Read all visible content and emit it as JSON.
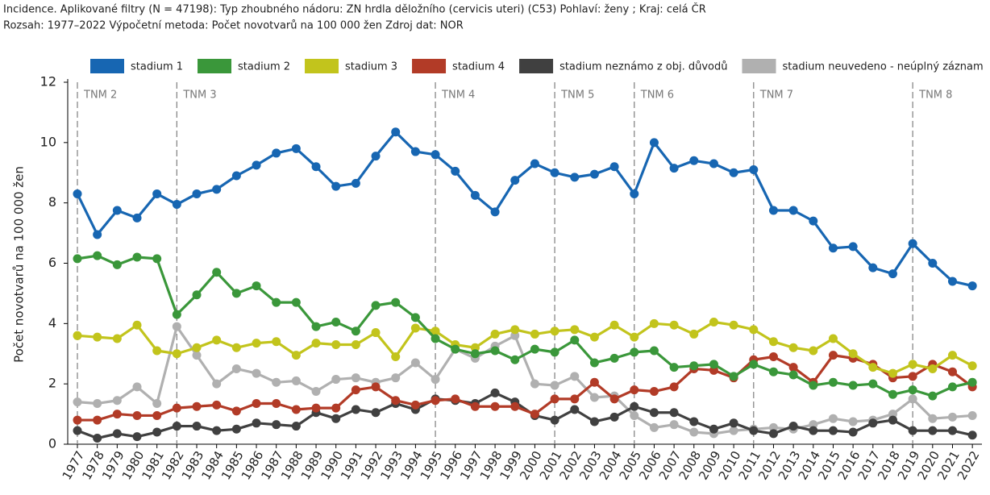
{
  "header": {
    "line1": "Incidence. Aplikované filtry (N = 47198): Typ zhoubného nádoru: ZN hrdla děložního (cervicis uteri) (C53) Pohlaví: ženy ; Kraj: celá ČR",
    "line2": "Rozsah: 1977–2022 Výpočetní metoda: Počet novotvarů na 100 000 žen Zdroj dat: NOR"
  },
  "chart_data": {
    "type": "line",
    "y_label": "Počet novotvarů na 100 000 žen",
    "categories": [
      "1977",
      "1978",
      "1979",
      "1980",
      "1981",
      "1982",
      "1983",
      "1984",
      "1985",
      "1986",
      "1987",
      "1988",
      "1989",
      "1990",
      "1991",
      "1992",
      "1993",
      "1994",
      "1995",
      "1996",
      "1997",
      "1998",
      "1999",
      "2000",
      "2001",
      "2002",
      "2003",
      "2004",
      "2005",
      "2006",
      "2007",
      "2008",
      "2009",
      "2010",
      "2011",
      "2012",
      "2013",
      "2014",
      "2015",
      "2016",
      "2017",
      "2018",
      "2019",
      "2020",
      "2021",
      "2022"
    ],
    "series": [
      {
        "name": "stadium 1",
        "color": "#1766b2",
        "values": [
          8.3,
          6.95,
          7.75,
          7.5,
          8.3,
          7.95,
          8.3,
          8.45,
          8.9,
          9.25,
          9.65,
          9.8,
          9.2,
          8.55,
          8.65,
          9.55,
          10.35,
          9.7,
          9.6,
          9.05,
          8.25,
          7.7,
          8.75,
          9.3,
          9.0,
          8.85,
          8.95,
          9.2,
          8.3,
          10.0,
          9.15,
          9.4,
          9.3,
          9.0,
          9.1,
          7.75,
          7.75,
          7.4,
          6.5,
          6.55,
          5.85,
          5.65,
          6.65,
          6.0,
          5.4,
          5.25
        ]
      },
      {
        "name": "stadium 2",
        "color": "#3a973a",
        "values": [
          6.15,
          6.25,
          5.95,
          6.2,
          6.15,
          4.3,
          4.95,
          5.7,
          5.0,
          5.25,
          4.7,
          4.7,
          3.9,
          4.05,
          3.75,
          4.6,
          4.7,
          4.2,
          3.5,
          3.15,
          3.0,
          3.1,
          2.8,
          3.15,
          3.05,
          3.45,
          2.7,
          2.85,
          3.05,
          3.1,
          2.55,
          2.6,
          2.65,
          2.25,
          2.65,
          2.4,
          2.3,
          1.95,
          2.05,
          1.95,
          2.0,
          1.65,
          1.8,
          1.6,
          1.9,
          2.05
        ]
      },
      {
        "name": "stadium 3",
        "color": "#c2c41c",
        "values": [
          3.6,
          3.55,
          3.5,
          3.95,
          3.1,
          3.0,
          3.2,
          3.45,
          3.2,
          3.35,
          3.4,
          2.95,
          3.35,
          3.3,
          3.3,
          3.7,
          2.9,
          3.85,
          3.75,
          3.3,
          3.2,
          3.65,
          3.8,
          3.65,
          3.75,
          3.8,
          3.55,
          3.95,
          3.55,
          4.0,
          3.95,
          3.65,
          4.05,
          3.95,
          3.8,
          3.4,
          3.2,
          3.1,
          3.5,
          3.0,
          2.55,
          2.35,
          2.65,
          2.5,
          2.95,
          2.6
        ]
      },
      {
        "name": "stadium 4",
        "color": "#b23b27",
        "values": [
          0.8,
          0.8,
          1.0,
          0.95,
          0.95,
          1.2,
          1.25,
          1.3,
          1.1,
          1.35,
          1.35,
          1.15,
          1.2,
          1.2,
          1.8,
          1.9,
          1.45,
          1.3,
          1.45,
          1.5,
          1.25,
          1.25,
          1.25,
          1.0,
          1.5,
          1.5,
          2.05,
          1.5,
          1.8,
          1.75,
          1.9,
          2.5,
          2.45,
          2.2,
          2.8,
          2.9,
          2.55,
          2.05,
          2.95,
          2.85,
          2.65,
          2.2,
          2.25,
          2.65,
          2.4,
          1.9
        ]
      },
      {
        "name": "stadium neznámo z obj. důvodů",
        "color": "#404040",
        "values": [
          0.45,
          0.2,
          0.35,
          0.25,
          0.4,
          0.6,
          0.6,
          0.45,
          0.5,
          0.7,
          0.65,
          0.6,
          1.05,
          0.85,
          1.15,
          1.05,
          1.35,
          1.15,
          1.5,
          1.45,
          1.35,
          1.7,
          1.4,
          0.95,
          0.8,
          1.15,
          0.75,
          0.9,
          1.25,
          1.05,
          1.05,
          0.75,
          0.5,
          0.7,
          0.45,
          0.35,
          0.6,
          0.45,
          0.45,
          0.4,
          0.7,
          0.8,
          0.45,
          0.45,
          0.45,
          0.3
        ]
      },
      {
        "name": "stadium neuvedeno - neúplný záznam",
        "color": "#b0b0b0",
        "values": [
          1.4,
          1.35,
          1.45,
          1.9,
          1.35,
          3.9,
          2.95,
          2.0,
          2.5,
          2.35,
          2.05,
          2.1,
          1.75,
          2.15,
          2.2,
          2.05,
          2.2,
          2.7,
          2.15,
          3.15,
          2.85,
          3.25,
          3.6,
          2.0,
          1.95,
          2.25,
          1.55,
          1.6,
          0.95,
          0.55,
          0.65,
          0.4,
          0.35,
          0.45,
          0.5,
          0.55,
          0.5,
          0.65,
          0.85,
          0.75,
          0.8,
          1.0,
          1.5,
          0.85,
          0.9,
          0.95
        ]
      }
    ],
    "periods": [
      {
        "year": 1977,
        "label": "TNM 2"
      },
      {
        "year": 1982,
        "label": "TNM 3"
      },
      {
        "year": 1995,
        "label": "TNM 4"
      },
      {
        "year": 2001,
        "label": "TNM 5"
      },
      {
        "year": 2005,
        "label": "TNM 6"
      },
      {
        "year": 2011,
        "label": "TNM 7"
      },
      {
        "year": 2019,
        "label": "TNM 8"
      }
    ],
    "ylim": [
      0,
      12
    ],
    "yticks": [
      0,
      2,
      4,
      6,
      8,
      10,
      12
    ]
  }
}
